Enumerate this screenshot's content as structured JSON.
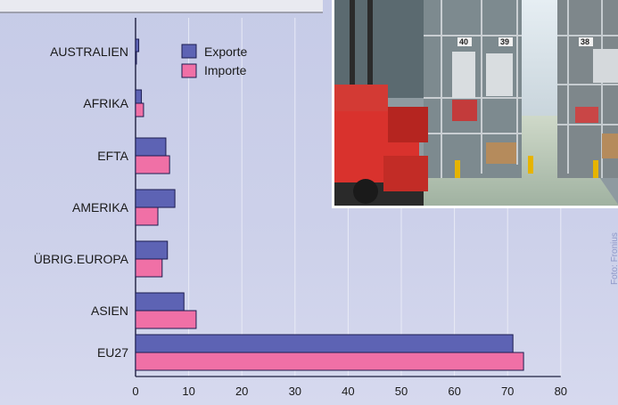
{
  "chart_data": {
    "type": "bar",
    "orientation": "horizontal",
    "categories": [
      "AUSTRALIEN",
      "AFRIKA",
      "EFTA",
      "AMERIKA",
      "ÜBRIG.EUROPA",
      "ASIEN",
      "EU27"
    ],
    "series": [
      {
        "name": "Exporte",
        "color": "#5d63b4",
        "values": [
          0.6,
          1.1,
          5.7,
          7.4,
          6.0,
          9.1,
          71.0
        ]
      },
      {
        "name": "Importe",
        "color": "#f070a6",
        "values": [
          0.1,
          1.5,
          6.4,
          4.2,
          5.0,
          11.4,
          73.0
        ]
      }
    ],
    "xticks": [
      "0",
      "10",
      "20",
      "30",
      "40",
      "50",
      "60",
      "70",
      "80"
    ],
    "xlim": [
      0,
      80
    ],
    "grid": true,
    "legend_position": "top-left inside plot"
  },
  "photo": {
    "description_icon": "warehouse-photo",
    "rack_labels": [
      "40",
      "39",
      "38"
    ]
  },
  "credit": "Foto: Fronius"
}
